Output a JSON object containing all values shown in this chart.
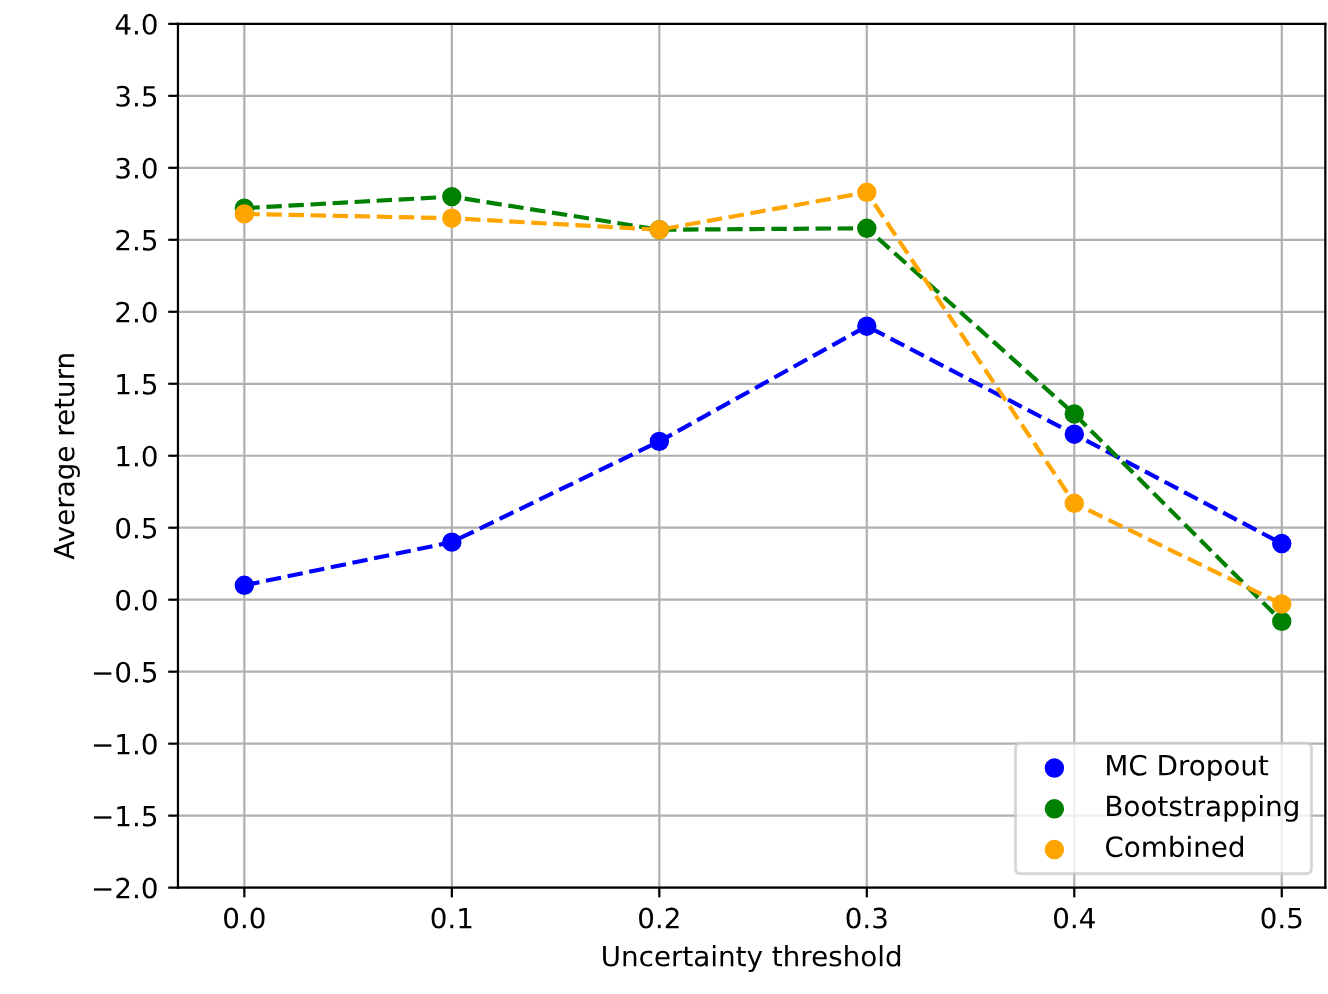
{
  "chart_data": {
    "type": "line",
    "xlabel": "Uncertainty threshold",
    "ylabel": "Average return",
    "x": [
      0.0,
      0.1,
      0.2,
      0.3,
      0.4,
      0.5
    ],
    "series": [
      {
        "name": "MC Dropout",
        "color": "#0000ff",
        "values": [
          0.1,
          0.4,
          1.1,
          1.9,
          1.15,
          0.39
        ]
      },
      {
        "name": "Bootstrapping",
        "color": "#008000",
        "values": [
          2.72,
          2.8,
          2.57,
          2.58,
          1.29,
          -0.15
        ]
      },
      {
        "name": "Combined",
        "color": "#ffa500",
        "values": [
          2.68,
          2.65,
          2.57,
          2.83,
          0.67,
          -0.03
        ]
      }
    ],
    "xlim": [
      -0.032,
      0.521
    ],
    "ylim": [
      -2.0,
      4.0
    ],
    "xticks": [
      {
        "value": 0.0,
        "label": "0.0"
      },
      {
        "value": 0.1,
        "label": "0.1"
      },
      {
        "value": 0.2,
        "label": "0.2"
      },
      {
        "value": 0.3,
        "label": "0.3"
      },
      {
        "value": 0.4,
        "label": "0.4"
      },
      {
        "value": 0.5,
        "label": "0.5"
      }
    ],
    "yticks": [
      {
        "value": -2.0,
        "label": "−2.0"
      },
      {
        "value": -1.5,
        "label": "−1.5"
      },
      {
        "value": -1.0,
        "label": "−1.0"
      },
      {
        "value": -0.5,
        "label": "−0.5"
      },
      {
        "value": 0.0,
        "label": "0.0"
      },
      {
        "value": 0.5,
        "label": "0.5"
      },
      {
        "value": 1.0,
        "label": "1.0"
      },
      {
        "value": 1.5,
        "label": "1.5"
      },
      {
        "value": 2.0,
        "label": "2.0"
      },
      {
        "value": 2.5,
        "label": "2.5"
      },
      {
        "value": 3.0,
        "label": "3.0"
      },
      {
        "value": 3.5,
        "label": "3.5"
      },
      {
        "value": 4.0,
        "label": "4.0"
      }
    ],
    "grid": true,
    "legend": "lower right",
    "marker": "circle",
    "line_style": "dashed"
  }
}
